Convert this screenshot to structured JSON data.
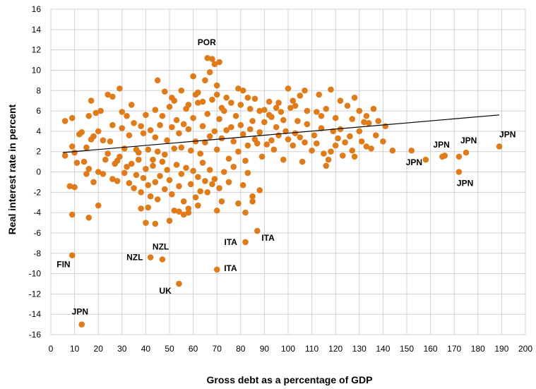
{
  "chart_data": {
    "type": "scatter",
    "xlabel": "Gross debt as a percentage of GDP",
    "ylabel": "Real interest rate in percent",
    "xlim": [
      0,
      200
    ],
    "ylim": [
      -16,
      16
    ],
    "x_ticks": [
      0,
      10,
      20,
      30,
      40,
      50,
      60,
      70,
      80,
      90,
      100,
      110,
      120,
      130,
      140,
      150,
      160,
      170,
      180,
      190,
      200
    ],
    "y_ticks": [
      -16,
      -14,
      -12,
      -10,
      -8,
      -6,
      -4,
      -2,
      0,
      2,
      4,
      6,
      8,
      10,
      12,
      14,
      16
    ],
    "grid": true,
    "legend": "none",
    "marker_color": "#e07b1a",
    "trendline": {
      "type": "linear",
      "color": "#000000",
      "points": [
        [
          5,
          1.9
        ],
        [
          189,
          5.6
        ]
      ]
    },
    "series": [
      {
        "values": [
          [
            66,
            11.2
          ],
          [
            68,
            11.1
          ],
          [
            69,
            10.6
          ],
          [
            71,
            10.8
          ],
          [
            67,
            9.8
          ],
          [
            60,
            9.4
          ],
          [
            65,
            9.0
          ],
          [
            45,
            9.0
          ],
          [
            29,
            8.2
          ],
          [
            70,
            8.5
          ],
          [
            79,
            8.2
          ],
          [
            81,
            8.0
          ],
          [
            100,
            8.2
          ],
          [
            107,
            8.0
          ],
          [
            118,
            8.1
          ],
          [
            128,
            7.3
          ],
          [
            105,
            7.5
          ],
          [
            113,
            7.6
          ],
          [
            17,
            7.0
          ],
          [
            24,
            7.6
          ],
          [
            26,
            7.4
          ],
          [
            51,
            7.3
          ],
          [
            61,
            7.6
          ],
          [
            83,
            7.3
          ],
          [
            92,
            6.9
          ],
          [
            102,
            7.0
          ],
          [
            122,
            7.0
          ],
          [
            136,
            6.2
          ],
          [
            16,
            5.5
          ],
          [
            19,
            5.8
          ],
          [
            21,
            6.0
          ],
          [
            9,
            5.3
          ],
          [
            6,
            5.0
          ],
          [
            32,
            5.5
          ],
          [
            44,
            6.1
          ],
          [
            72,
            6.3
          ],
          [
            90,
            6.1
          ],
          [
            95,
            6.3
          ],
          [
            116,
            6.2
          ],
          [
            112,
            5.9
          ],
          [
            125,
            6.5
          ],
          [
            130,
            6.0
          ],
          [
            132,
            4.9
          ],
          [
            127,
            5.2
          ],
          [
            133,
            5.5
          ],
          [
            141,
            4.5
          ],
          [
            138,
            5.0
          ],
          [
            9,
            2.5
          ],
          [
            10,
            1.9
          ],
          [
            12,
            3.7
          ],
          [
            13,
            3.9
          ],
          [
            14,
            1.0
          ],
          [
            15,
            2.4
          ],
          [
            16,
            0.3
          ],
          [
            17,
            3.2
          ],
          [
            18,
            3.5
          ],
          [
            20,
            4.0
          ],
          [
            22,
            3.1
          ],
          [
            23,
            1.2
          ],
          [
            25,
            3.0
          ],
          [
            27,
            0.8
          ],
          [
            28,
            1.1
          ],
          [
            30,
            4.3
          ],
          [
            31,
            2.3
          ],
          [
            33,
            3.6
          ],
          [
            35,
            4.8
          ],
          [
            36,
            2.2
          ],
          [
            37,
            1.9
          ],
          [
            38,
            4.5
          ],
          [
            39,
            3.8
          ],
          [
            40,
            5.6
          ],
          [
            41,
            2.2
          ],
          [
            42,
            4.1
          ],
          [
            43,
            1.2
          ],
          [
            44,
            3.4
          ],
          [
            45,
            2.0
          ],
          [
            46,
            4.6
          ],
          [
            47,
            5.5
          ],
          [
            48,
            1.7
          ],
          [
            49,
            3.1
          ],
          [
            50,
            6.4
          ],
          [
            51,
            4.4
          ],
          [
            52,
            2.3
          ],
          [
            53,
            5.1
          ],
          [
            54,
            3.8
          ],
          [
            55,
            2.4
          ],
          [
            56,
            4.7
          ],
          [
            57,
            6.2
          ],
          [
            58,
            4.2
          ],
          [
            59,
            2.1
          ],
          [
            60,
            5.3
          ],
          [
            61,
            3.0
          ],
          [
            62,
            6.8
          ],
          [
            63,
            1.8
          ],
          [
            64,
            4.5
          ],
          [
            65,
            2.9
          ],
          [
            66,
            5.7
          ],
          [
            67,
            3.5
          ],
          [
            68,
            7.1
          ],
          [
            69,
            4.0
          ],
          [
            70,
            2.2
          ],
          [
            71,
            5.2
          ],
          [
            72,
            3.3
          ],
          [
            73,
            6.0
          ],
          [
            74,
            4.1
          ],
          [
            75,
            1.3
          ],
          [
            76,
            4.4
          ],
          [
            77,
            3.0
          ],
          [
            78,
            5.5
          ],
          [
            79,
            2.0
          ],
          [
            80,
            4.6
          ],
          [
            81,
            3.7
          ],
          [
            82,
            1.1
          ],
          [
            83,
            2.6
          ],
          [
            84,
            4.2
          ],
          [
            85,
            5.0
          ],
          [
            86,
            3.2
          ],
          [
            87,
            2.8
          ],
          [
            88,
            3.9
          ],
          [
            89,
            1.5
          ],
          [
            90,
            4.9
          ],
          [
            91,
            2.7
          ],
          [
            92,
            5.6
          ],
          [
            93,
            3.1
          ],
          [
            94,
            2.2
          ],
          [
            95,
            4.4
          ],
          [
            96,
            3.6
          ],
          [
            97,
            5.9
          ],
          [
            98,
            1.2
          ],
          [
            99,
            4.0
          ],
          [
            100,
            3.2
          ],
          [
            101,
            6.3
          ],
          [
            102,
            2.6
          ],
          [
            103,
            3.8
          ],
          [
            104,
            5.0
          ],
          [
            105,
            3.4
          ],
          [
            106,
            1.0
          ],
          [
            107,
            2.9
          ],
          [
            108,
            4.7
          ],
          [
            110,
            2.1
          ],
          [
            111,
            3.6
          ],
          [
            112,
            2.8
          ],
          [
            114,
            4.3
          ],
          [
            115,
            1.8
          ],
          [
            116,
            0.6
          ],
          [
            117,
            1.2
          ],
          [
            118,
            2.0
          ],
          [
            119,
            4.0
          ],
          [
            120,
            2.6
          ],
          [
            121,
            3.3
          ],
          [
            122,
            4.2
          ],
          [
            123,
            1.6
          ],
          [
            124,
            2.9
          ],
          [
            126,
            3.5
          ],
          [
            127,
            2.1
          ],
          [
            128,
            1.5
          ],
          [
            130,
            4.0
          ],
          [
            131,
            3.0
          ],
          [
            133,
            2.5
          ],
          [
            134,
            4.8
          ],
          [
            135,
            2.3
          ],
          [
            137,
            3.6
          ],
          [
            140,
            3.0
          ],
          [
            20,
            0.0
          ],
          [
            22,
            -0.2
          ],
          [
            24,
            1.8
          ],
          [
            26,
            -0.7
          ],
          [
            28,
            -0.9
          ],
          [
            29,
            1.5
          ],
          [
            31,
            -0.1
          ],
          [
            32,
            0.5
          ],
          [
            33,
            -1.1
          ],
          [
            34,
            0.8
          ],
          [
            35,
            -1.6
          ],
          [
            36,
            -0.3
          ],
          [
            37,
            1.2
          ],
          [
            38,
            -2.0
          ],
          [
            39,
            -0.6
          ],
          [
            40,
            0.3
          ],
          [
            41,
            -1.3
          ],
          [
            42,
            -2.4
          ],
          [
            43,
            0.6
          ],
          [
            44,
            -1.0
          ],
          [
            45,
            -2.7
          ],
          [
            46,
            -0.4
          ],
          [
            47,
            1.0
          ],
          [
            48,
            -1.7
          ],
          [
            49,
            0.2
          ],
          [
            50,
            -0.8
          ],
          [
            51,
            -2.2
          ],
          [
            52,
            -3.8
          ],
          [
            53,
            0.7
          ],
          [
            54,
            -1.4
          ],
          [
            55,
            -0.2
          ],
          [
            56,
            -2.9
          ],
          [
            57,
            0.4
          ],
          [
            58,
            -4.0
          ],
          [
            59,
            -1.2
          ],
          [
            60,
            0.1
          ],
          [
            61,
            -2.5
          ],
          [
            62,
            -0.5
          ],
          [
            63,
            -1.9
          ],
          [
            64,
            0.9
          ],
          [
            65,
            -0.9
          ],
          [
            66,
            -2.0
          ],
          [
            67,
            0.2
          ],
          [
            68,
            -1.2
          ],
          [
            69,
            -0.7
          ],
          [
            70,
            -3.8
          ],
          [
            71,
            -1.6
          ],
          [
            72,
            -2.9
          ],
          [
            73,
            0.0
          ],
          [
            75,
            -1.0
          ],
          [
            77,
            0.5
          ],
          [
            79,
            -3.1
          ],
          [
            81,
            -1.3
          ],
          [
            83,
            -0.1
          ],
          [
            85,
            -2.4
          ],
          [
            88,
            -1.8
          ],
          [
            26,
            4.6
          ],
          [
            30,
            5.9
          ],
          [
            34,
            6.6
          ],
          [
            48,
            7.9
          ],
          [
            52,
            7.0
          ],
          [
            55,
            8.0
          ],
          [
            58,
            6.6
          ],
          [
            62,
            7.8
          ],
          [
            64,
            6.9
          ],
          [
            70,
            7.6
          ],
          [
            74,
            7.3
          ],
          [
            76,
            6.8
          ],
          [
            80,
            6.6
          ],
          [
            84,
            6.2
          ],
          [
            86,
            7.2
          ],
          [
            88,
            6.0
          ],
          [
            93,
            5.4
          ],
          [
            96,
            6.8
          ],
          [
            98,
            5.1
          ],
          [
            103,
            6.5
          ],
          [
            108,
            6.0
          ],
          [
            114,
            5.5
          ],
          [
            120,
            5.3
          ],
          [
            8,
            -1.4
          ],
          [
            10,
            -1.5
          ],
          [
            15,
            -0.2
          ],
          [
            6,
            1.6
          ],
          [
            11,
            0.9
          ],
          [
            18,
            -1.0
          ],
          [
            20,
            -3.3
          ],
          [
            9,
            -4.2
          ],
          [
            16,
            -4.5
          ],
          [
            38,
            -3.6
          ],
          [
            40,
            -5.0
          ],
          [
            41,
            -3.5
          ],
          [
            44,
            -5.1
          ],
          [
            50,
            -4.8
          ],
          [
            54,
            -3.9
          ],
          [
            56,
            -4.2
          ],
          [
            58,
            -3.6
          ],
          [
            62,
            -3.3
          ],
          [
            82,
            -4.0
          ],
          [
            85,
            -2.9
          ],
          [
            87,
            -5.8
          ],
          [
            82,
            -6.9
          ],
          [
            70,
            -9.6
          ],
          [
            42,
            -8.4
          ],
          [
            47,
            -8.6
          ],
          [
            9,
            -8.2
          ],
          [
            54,
            -11.0
          ],
          [
            13,
            -15.0
          ],
          [
            144,
            2.1
          ],
          [
            152,
            2.1
          ],
          [
            158,
            1.2
          ],
          [
            165,
            1.5
          ],
          [
            166,
            1.6
          ],
          [
            172,
            1.5
          ],
          [
            175,
            1.9
          ],
          [
            172,
            0.0
          ],
          [
            189,
            2.5
          ]
        ]
      }
    ],
    "annotations": [
      {
        "text": "POR",
        "x": 66,
        "y": 11.2
      },
      {
        "text": "FIN",
        "x": 9,
        "y": -8.2
      },
      {
        "text": "NZL",
        "x": 42,
        "y": -8.4
      },
      {
        "text": "NZL",
        "x": 47,
        "y": -8.6
      },
      {
        "text": "UK",
        "x": 54,
        "y": -11.0
      },
      {
        "text": "ITA",
        "x": 82,
        "y": -6.9
      },
      {
        "text": "ITA",
        "x": 87,
        "y": -5.8
      },
      {
        "text": "ITA",
        "x": 70,
        "y": -9.6
      },
      {
        "text": "JPN",
        "x": 13,
        "y": -15.0
      },
      {
        "text": "JPN",
        "x": 152,
        "y": 2.1
      },
      {
        "text": "JPN",
        "x": 165,
        "y": 1.5
      },
      {
        "text": "JPN",
        "x": 175,
        "y": 1.9
      },
      {
        "text": "JPN",
        "x": 172,
        "y": 0.0
      },
      {
        "text": "JPN",
        "x": 189,
        "y": 2.5
      }
    ]
  }
}
